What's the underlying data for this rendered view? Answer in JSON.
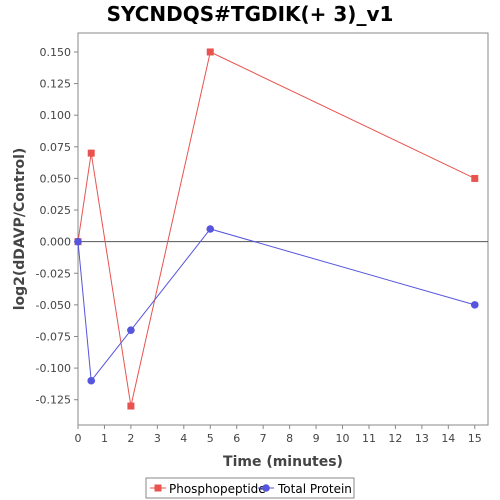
{
  "chart_data": {
    "type": "line",
    "title": "SYCNDQS#TGDIK(+ 3)_v1",
    "xlabel": "Time (minutes)",
    "ylabel": "log2(dDAVP/Control)",
    "xlim": [
      0,
      15.5
    ],
    "ylim": [
      -0.145,
      0.165
    ],
    "x_ticks": [
      0,
      1,
      2,
      3,
      4,
      5,
      6,
      7,
      8,
      9,
      10,
      11,
      12,
      13,
      14,
      15
    ],
    "y_ticks": [
      -0.125,
      -0.1,
      -0.075,
      -0.05,
      -0.025,
      0.0,
      0.025,
      0.05,
      0.075,
      0.1,
      0.125,
      0.15
    ],
    "y_tick_labels": [
      "-0.125",
      "-0.100",
      "-0.075",
      "-0.050",
      "-0.025",
      "0.000",
      "0.025",
      "0.050",
      "0.075",
      "0.100",
      "0.125",
      "0.150"
    ],
    "zero_line": true,
    "grid": false,
    "legend_position": "bottom",
    "series": [
      {
        "name": "Phosphopeptide",
        "color": "#e8534f",
        "marker": "square",
        "points": [
          [
            0,
            0.0
          ],
          [
            0.5,
            0.07
          ],
          [
            2,
            -0.13
          ],
          [
            5,
            0.15
          ],
          [
            15,
            0.05
          ]
        ]
      },
      {
        "name": "Total Protein",
        "color": "#5555dd",
        "marker": "circle",
        "points": [
          [
            0,
            0.0
          ],
          [
            0.5,
            -0.11
          ],
          [
            2,
            -0.07
          ],
          [
            5,
            0.01
          ],
          [
            15,
            -0.05
          ]
        ]
      }
    ]
  }
}
